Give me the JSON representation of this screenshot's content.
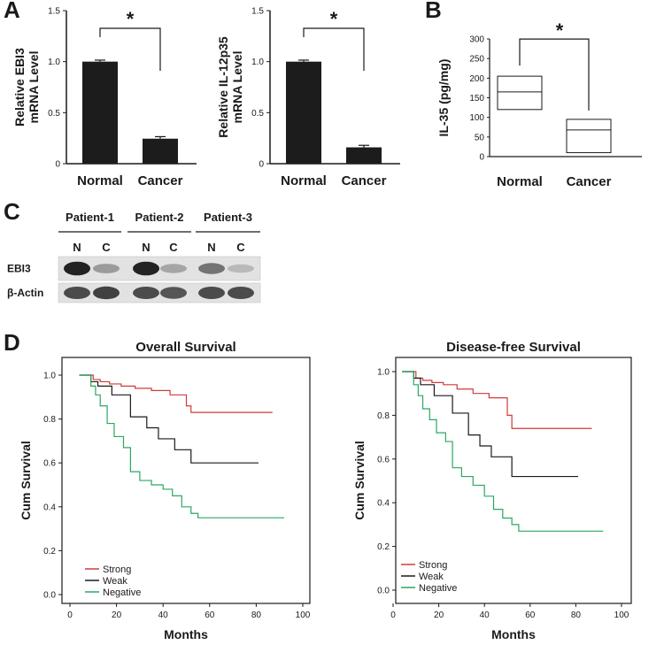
{
  "panel_labels": {
    "a": "A",
    "b": "B",
    "c": "C",
    "d": "D"
  },
  "chart_data": [
    {
      "id": "ebi3-mrna",
      "type": "bar",
      "title": "",
      "ylabel_line1": "Relative EBI3",
      "ylabel_line2": "mRNA Level",
      "categories": [
        "Normal",
        "Cancer"
      ],
      "values": [
        1.0,
        0.245
      ],
      "errors": [
        0.015,
        0.02
      ],
      "ylim": [
        0,
        1.5
      ],
      "yticks": [
        "0",
        "0.5",
        "1.0",
        "1.5"
      ],
      "significance": "*",
      "bar_color": "#1c1c1c"
    },
    {
      "id": "il12p35-mrna",
      "type": "bar",
      "title": "",
      "ylabel_line1": "Relative IL-12p35",
      "ylabel_line2": "mRNA Level",
      "categories": [
        "Normal",
        "Cancer"
      ],
      "values": [
        1.0,
        0.16
      ],
      "errors": [
        0.015,
        0.02
      ],
      "ylim": [
        0,
        1.5
      ],
      "yticks": [
        "0",
        "0.5",
        "1.0",
        "1.5"
      ],
      "significance": "*",
      "bar_color": "#1c1c1c"
    },
    {
      "id": "il35-serum",
      "type": "box",
      "ylabel": "IL-35 (pg/mg)",
      "categories": [
        "Normal",
        "Cancer"
      ],
      "boxes": [
        {
          "q1": 120,
          "median": 165,
          "q3": 205
        },
        {
          "q1": 10,
          "median": 68,
          "q3": 95
        }
      ],
      "ylim": [
        0,
        300
      ],
      "yticks": [
        "0",
        "50",
        "100",
        "150",
        "200",
        "250",
        "300"
      ],
      "significance": "*"
    },
    {
      "id": "overall-survival",
      "type": "line",
      "step": true,
      "title": "Overall Survival",
      "xlabel": "Months",
      "ylabel": "Cum Survival",
      "xlim": [
        0,
        100
      ],
      "ylim": [
        0,
        1.0
      ],
      "xticks": [
        "0",
        "20",
        "40",
        "60",
        "80",
        "100"
      ],
      "yticks": [
        "0.0",
        "0.2",
        "0.4",
        "0.6",
        "0.8",
        "1.0"
      ],
      "legend_position": "bottom-left",
      "series": [
        {
          "name": "Strong",
          "color": "#d23a3a",
          "x": [
            4,
            10,
            13,
            17,
            22,
            28,
            35,
            43,
            50,
            52,
            87
          ],
          "y": [
            1.0,
            0.98,
            0.97,
            0.96,
            0.95,
            0.94,
            0.93,
            0.91,
            0.86,
            0.83,
            0.83
          ]
        },
        {
          "name": "Weak",
          "color": "#1a1a1a",
          "x": [
            4,
            9,
            12,
            18,
            26,
            33,
            38,
            45,
            52,
            81
          ],
          "y": [
            1.0,
            0.97,
            0.95,
            0.91,
            0.81,
            0.76,
            0.71,
            0.66,
            0.6,
            0.6
          ]
        },
        {
          "name": "Negative",
          "color": "#2aa860",
          "x": [
            4,
            9,
            11,
            13,
            16,
            19,
            23,
            26,
            30,
            35,
            40,
            44,
            48,
            52,
            55,
            92
          ],
          "y": [
            1.0,
            0.95,
            0.91,
            0.86,
            0.78,
            0.72,
            0.67,
            0.56,
            0.52,
            0.5,
            0.48,
            0.45,
            0.4,
            0.37,
            0.35,
            0.35
          ]
        }
      ]
    },
    {
      "id": "disease-free-survival",
      "type": "line",
      "step": true,
      "title": "Disease-free Survival",
      "xlabel": "Months",
      "ylabel": "Cum Survival",
      "xlim": [
        0,
        100
      ],
      "ylim": [
        0,
        1.0
      ],
      "xticks": [
        "0",
        "20",
        "40",
        "60",
        "80",
        "100"
      ],
      "yticks": [
        "0.0",
        "0.2",
        "0.4",
        "0.6",
        "0.8",
        "1.0"
      ],
      "legend_position": "bottom-left",
      "series": [
        {
          "name": "Strong",
          "color": "#d23a3a",
          "x": [
            4,
            10,
            13,
            17,
            22,
            28,
            35,
            42,
            50,
            52,
            87
          ],
          "y": [
            1.0,
            0.97,
            0.96,
            0.95,
            0.94,
            0.92,
            0.9,
            0.88,
            0.8,
            0.74,
            0.74
          ]
        },
        {
          "name": "Weak",
          "color": "#1a1a1a",
          "x": [
            4,
            9,
            12,
            18,
            26,
            33,
            38,
            43,
            52,
            81
          ],
          "y": [
            1.0,
            0.97,
            0.94,
            0.89,
            0.81,
            0.71,
            0.66,
            0.61,
            0.52,
            0.52
          ]
        },
        {
          "name": "Negative",
          "color": "#2aa860",
          "x": [
            4,
            9,
            11,
            13,
            16,
            19,
            23,
            26,
            30,
            35,
            40,
            44,
            48,
            52,
            55,
            92
          ],
          "y": [
            1.0,
            0.94,
            0.89,
            0.83,
            0.78,
            0.72,
            0.68,
            0.56,
            0.52,
            0.48,
            0.43,
            0.37,
            0.33,
            0.3,
            0.27,
            0.27
          ]
        }
      ]
    }
  ],
  "western_blot": {
    "patients": [
      "Patient-1",
      "Patient-2",
      "Patient-3"
    ],
    "lanes": [
      "N",
      "C",
      "N",
      "C",
      "N",
      "C"
    ],
    "rows": [
      {
        "label": "EBI3",
        "intensity": [
          0.95,
          0.35,
          0.95,
          0.3,
          0.55,
          0.2
        ]
      },
      {
        "label": "β-Actin",
        "intensity": [
          0.75,
          0.8,
          0.75,
          0.7,
          0.75,
          0.75
        ]
      }
    ]
  }
}
